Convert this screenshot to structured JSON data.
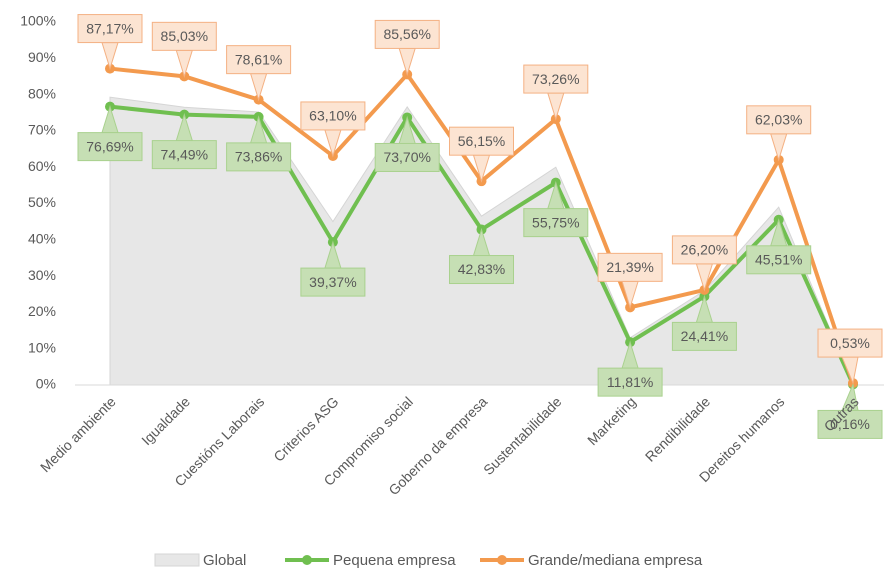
{
  "chart_data": {
    "type": "line",
    "categories": [
      "Medio ambiente",
      "Igualdade",
      "Cuestións Laborais",
      "Criterios ASG",
      "Compromiso social",
      "Goberno da empresa",
      "Sustentabilidade",
      "Marketing",
      "Rendibilidade",
      "Dereitos humanos",
      "Outras"
    ],
    "series": [
      {
        "name": "Global",
        "color": "#e7e7e7",
        "fill": "area",
        "values": [
          79.3,
          76.5,
          75.2,
          45,
          76.6,
          46.5,
          60,
          13,
          26,
          49,
          0.3
        ]
      },
      {
        "name": "Pequena empresa",
        "color": "#70bf50",
        "values": [
          76.69,
          74.49,
          73.86,
          39.37,
          73.7,
          42.83,
          55.75,
          11.81,
          24.41,
          45.51,
          0.16
        ],
        "value_labels": [
          "76,69%",
          "74,49%",
          "73,86%",
          "39,37%",
          "73,70%",
          "42,83%",
          "55,75%",
          "11,81%",
          "24,41%",
          "45,51%",
          "0,16%"
        ]
      },
      {
        "name": "Grande/mediana empresa",
        "color": "#f39a4e",
        "values": [
          87.17,
          85.03,
          78.61,
          63.1,
          85.56,
          56.15,
          73.26,
          21.39,
          26.2,
          62.03,
          0.53
        ],
        "value_labels": [
          "87,17%",
          "85,03%",
          "78,61%",
          "63,10%",
          "85,56%",
          "56,15%",
          "73,26%",
          "21,39%",
          "26,20%",
          "62,03%",
          "0,53%"
        ]
      }
    ],
    "ylim": [
      0,
      100
    ],
    "yticks": [
      {
        "value": 0,
        "label": "0%"
      },
      {
        "value": 10,
        "label": "10%"
      },
      {
        "value": 20,
        "label": "20%"
      },
      {
        "value": 30,
        "label": "30%"
      },
      {
        "value": 40,
        "label": "40%"
      },
      {
        "value": 50,
        "label": "50%"
      },
      {
        "value": 60,
        "label": "60%"
      },
      {
        "value": 70,
        "label": "70%"
      },
      {
        "value": 80,
        "label": "80%"
      },
      {
        "value": 90,
        "label": "90%"
      },
      {
        "value": 100,
        "label": "100%"
      }
    ],
    "legend": "bottom"
  }
}
